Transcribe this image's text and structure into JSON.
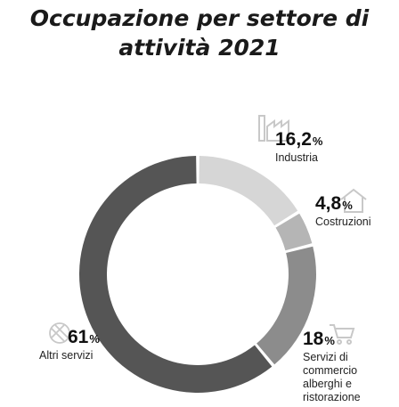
{
  "chart_data": {
    "type": "pie",
    "title_lines": [
      "Occupazione per settore di",
      "attività 2021"
    ],
    "unit": "%",
    "slices": [
      {
        "pct_label": "16,2",
        "value": 16.2,
        "label": "Industria",
        "color": "#d6d6d6",
        "icon": "factory-icon"
      },
      {
        "pct_label": "4,8",
        "value": 4.8,
        "label": "Costruzioni",
        "color": "#b5b5b5",
        "icon": "house-icon"
      },
      {
        "pct_label": "18",
        "value": 18,
        "label_lines": [
          "Servizi di",
          "commercio",
          "alberghi e",
          "ristorazione"
        ],
        "color": "#8c8c8c",
        "icon": "shopping-cart-icon"
      },
      {
        "pct_label": "61",
        "value": 61,
        "label": "Altri servizi",
        "color": "#555555",
        "icon": "globe-icon"
      }
    ]
  }
}
